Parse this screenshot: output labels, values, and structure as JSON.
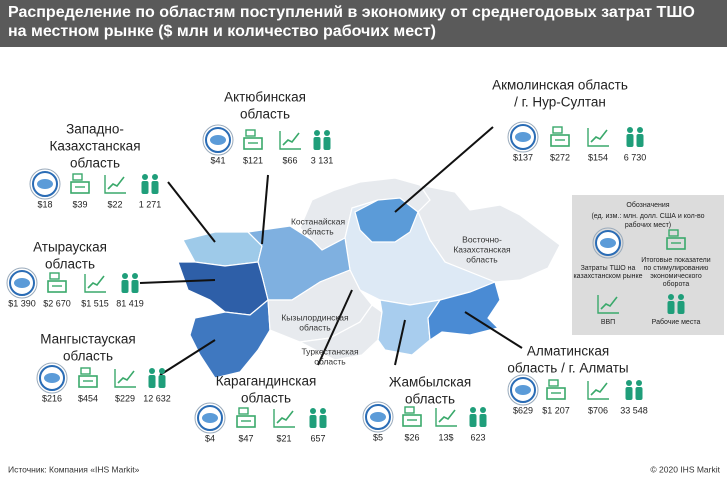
{
  "header": {
    "title_lines": [
      "Распределение по областям поступлений в экономику от среднегодовых затрат ТШО",
      "на местном рынке ($ млн и количество рабочих мест)"
    ]
  },
  "regions": [
    {
      "name_lines": [
        "Западно-",
        "Казахстанская",
        "область"
      ],
      "values": [
        "$18",
        "$39",
        "$22",
        "1 271"
      ]
    },
    {
      "name_lines": [
        "Актюбинская",
        "область"
      ],
      "values": [
        "$41",
        "$121",
        "$66",
        "3 131"
      ]
    },
    {
      "name_lines": [
        "Акмолинская область",
        "/ г. Нур-Султан"
      ],
      "values": [
        "$137",
        "$272",
        "$154",
        "6 730"
      ]
    },
    {
      "name_lines": [
        "Атырауская",
        "область"
      ],
      "values": [
        "$1 390",
        "$2 670",
        "$1 515",
        "81 419"
      ]
    },
    {
      "name_lines": [
        "Мангыстауская",
        "область"
      ],
      "values": [
        "$216",
        "$454",
        "$229",
        "12 632"
      ]
    },
    {
      "name_lines": [
        "Карагандинская",
        "область"
      ],
      "values": [
        "$4",
        "$47",
        "$21",
        "657"
      ]
    },
    {
      "name_lines": [
        "Жамбылская",
        "область"
      ],
      "values": [
        "$5",
        "$26",
        "13$",
        "623"
      ]
    },
    {
      "name_lines": [
        "Алматинская",
        "область / г. Алматы"
      ],
      "values": [
        "$629",
        "$1 207",
        "$706",
        "33 548"
      ]
    }
  ],
  "map_labels": [
    {
      "lines": [
        "Костанайская",
        "область"
      ]
    },
    {
      "lines": [
        "Восточно-",
        "Казахстанская",
        "область"
      ]
    },
    {
      "lines": [
        "Кызылординская",
        "область"
      ]
    },
    {
      "lines": [
        "Туркестанская",
        "область"
      ]
    }
  ],
  "legend": {
    "title": "Обозначения",
    "subtitle_lines": [
      "(ед. изм.: млн. долл. США и кол-во",
      "рабочих мест)"
    ],
    "items": [
      {
        "lines": [
          "Затраты ТШО на",
          "казахстанском рынке"
        ]
      },
      {
        "lines": [
          "Итоговые показатели",
          "по стимулированию",
          "экономического",
          "оборота"
        ]
      },
      {
        "lines": [
          "ВВП"
        ]
      },
      {
        "lines": [
          "Рабочие места"
        ]
      }
    ]
  },
  "footer": {
    "source": "Источник: Компания «IHS Markit»",
    "copyright": "© 2020 IHS Markit"
  }
}
